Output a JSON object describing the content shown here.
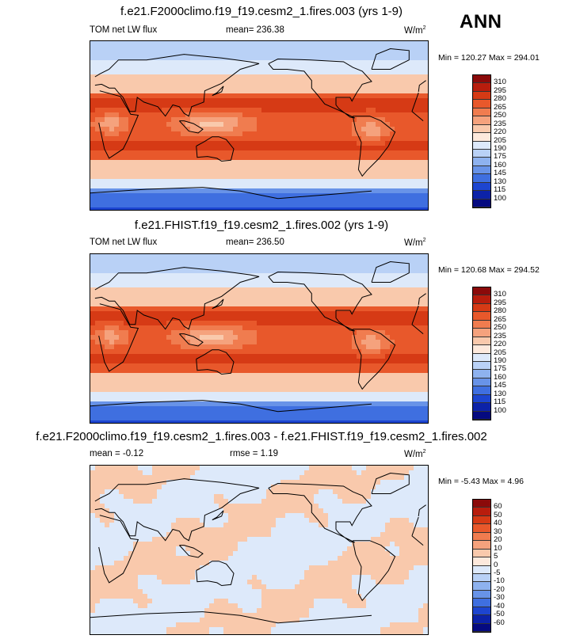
{
  "season": "ANN",
  "panels": [
    {
      "title": "f.e21.F2000climo.f19_f19.cesm2_1.fires.003 (yrs 1-9)",
      "left_label": "TOM net LW flux",
      "center_label": "mean= 236.38",
      "units": "W/m",
      "units_sup": "2",
      "minmax": "Min = 120.27 Max = 294.01",
      "colorbar_labels": [
        "310",
        "295",
        "280",
        "265",
        "250",
        "235",
        "220",
        "205",
        "190",
        "175",
        "160",
        "145",
        "130",
        "115",
        "100"
      ],
      "colorbar_colors": [
        "#8b0a0a",
        "#b81d0d",
        "#d63a15",
        "#e8582b",
        "#f07c4f",
        "#f5a27d",
        "#f9c9ac",
        "#fde9dc",
        "#dde9fa",
        "#b9d1f6",
        "#8eb2ef",
        "#6893e8",
        "#3f6fe0",
        "#1d45d0",
        "#0c22a8",
        "#050a80"
      ],
      "type": "field"
    },
    {
      "title": "f.e21.FHIST.f19_f19.cesm2_1.fires.002 (yrs 1-9)",
      "left_label": "TOM net LW flux",
      "center_label": "mean= 236.50",
      "units": "W/m",
      "units_sup": "2",
      "minmax": "Min = 120.68 Max = 294.52",
      "colorbar_labels": [
        "310",
        "295",
        "280",
        "265",
        "250",
        "235",
        "220",
        "205",
        "190",
        "175",
        "160",
        "145",
        "130",
        "115",
        "100"
      ],
      "colorbar_colors": [
        "#8b0a0a",
        "#b81d0d",
        "#d63a15",
        "#e8582b",
        "#f07c4f",
        "#f5a27d",
        "#f9c9ac",
        "#fde9dc",
        "#dde9fa",
        "#b9d1f6",
        "#8eb2ef",
        "#6893e8",
        "#3f6fe0",
        "#1d45d0",
        "#0c22a8",
        "#050a80"
      ],
      "type": "field"
    },
    {
      "title": "f.e21.F2000climo.f19_f19.cesm2_1.fires.003 - f.e21.FHIST.f19_f19.cesm2_1.fires.002",
      "left_label": "mean =  -0.12",
      "center_label": "rmse =   1.19",
      "units": "W/m",
      "units_sup": "2",
      "minmax": "Min = -5.43 Max =  4.96",
      "colorbar_labels": [
        "60",
        "50",
        "40",
        "30",
        "20",
        "10",
        "5",
        "0",
        "-5",
        "-10",
        "-20",
        "-30",
        "-40",
        "-50",
        "-60"
      ],
      "colorbar_colors": [
        "#8b0a0a",
        "#b81d0d",
        "#d63a15",
        "#e8582b",
        "#f07c4f",
        "#f5a27d",
        "#f9c9ac",
        "#fde9dc",
        "#dde9fa",
        "#b9d1f6",
        "#8eb2ef",
        "#6893e8",
        "#3f6fe0",
        "#1d45d0",
        "#0c22a8",
        "#050a80"
      ],
      "type": "diff"
    }
  ]
}
